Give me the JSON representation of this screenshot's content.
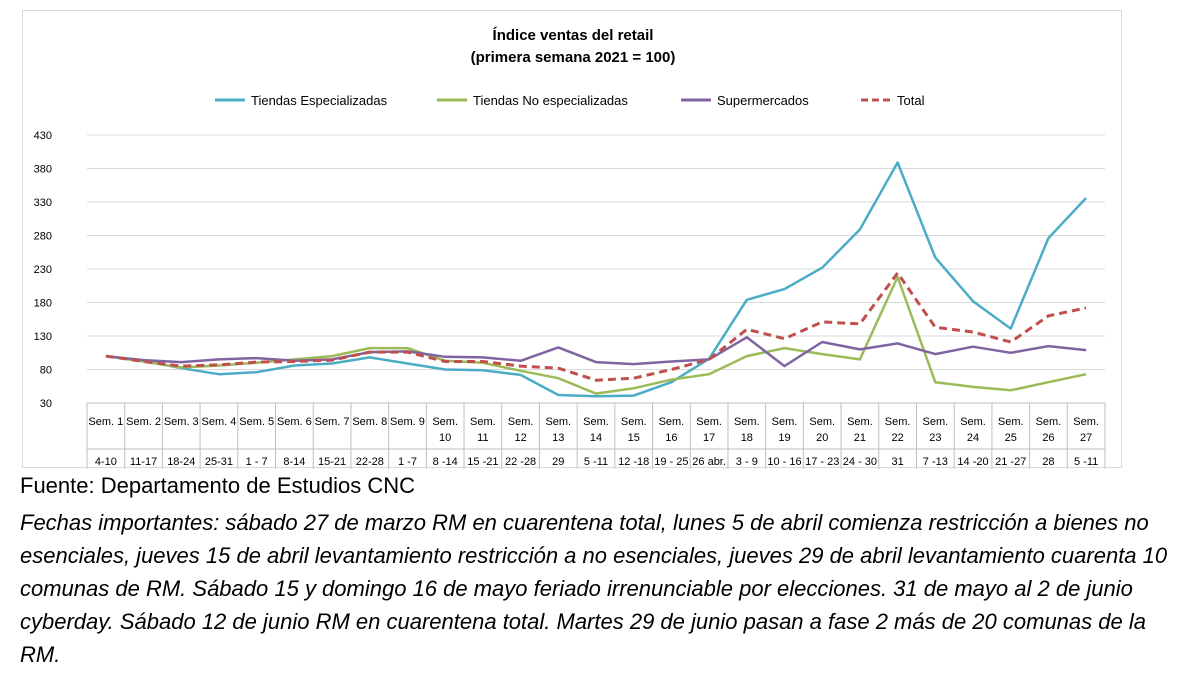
{
  "chart_data": {
    "type": "line",
    "title": "Índice ventas del retail",
    "subtitle": "(primera semana 2021 = 100)",
    "ylim": [
      30,
      430
    ],
    "yticks": [
      30,
      80,
      130,
      180,
      230,
      280,
      330,
      380,
      430
    ],
    "grid": true,
    "legend_position": "top",
    "categories": [
      {
        "week": "Sem. 1",
        "dates": "4-10"
      },
      {
        "week": "Sem. 2",
        "dates": "11-17"
      },
      {
        "week": "Sem. 3",
        "dates": "18-24"
      },
      {
        "week": "Sem. 4",
        "dates": "25-31"
      },
      {
        "week": "Sem. 5",
        "dates": "1 - 7"
      },
      {
        "week": "Sem. 6",
        "dates": "8-14"
      },
      {
        "week": "Sem. 7",
        "dates": "15-21"
      },
      {
        "week": "Sem. 8",
        "dates": "22-28"
      },
      {
        "week": "Sem. 9",
        "dates": "1 -7"
      },
      {
        "week": "Sem. 10",
        "dates": "8 -14"
      },
      {
        "week": "Sem. 11",
        "dates": "15 -21"
      },
      {
        "week": "Sem. 12",
        "dates": "22 -28"
      },
      {
        "week": "Sem. 13",
        "dates": "29"
      },
      {
        "week": "Sem. 14",
        "dates": "5 -11"
      },
      {
        "week": "Sem. 15",
        "dates": "12 -18"
      },
      {
        "week": "Sem. 16",
        "dates": "19 - 25"
      },
      {
        "week": "Sem. 17",
        "dates": "26 abr."
      },
      {
        "week": "Sem. 18",
        "dates": "3 - 9"
      },
      {
        "week": "Sem. 19",
        "dates": "10 - 16"
      },
      {
        "week": "Sem. 20",
        "dates": "17 - 23"
      },
      {
        "week": "Sem. 21",
        "dates": "24 - 30"
      },
      {
        "week": "Sem. 22",
        "dates": "31"
      },
      {
        "week": "Sem. 23",
        "dates": "7 -13"
      },
      {
        "week": "Sem. 24",
        "dates": "14 -20"
      },
      {
        "week": "Sem. 25",
        "dates": "21 -27"
      },
      {
        "week": "Sem. 26",
        "dates": "28"
      },
      {
        "week": "Sem. 27",
        "dates": "5 -11"
      }
    ],
    "series": [
      {
        "name": "Tiendas Especializadas",
        "color": "#4BACC6",
        "dash": false,
        "values": [
          100,
          93,
          82,
          73,
          76,
          86,
          89,
          98,
          89,
          80,
          79,
          72,
          42,
          40,
          41,
          61,
          96,
          184,
          200,
          232,
          289,
          389,
          247,
          182,
          141,
          276,
          336
        ]
      },
      {
        "name": "Tiendas No especializadas",
        "color": "#9BBB59",
        "dash": false,
        "values": [
          100,
          92,
          83,
          86,
          90,
          95,
          100,
          112,
          112,
          93,
          90,
          78,
          67,
          44,
          52,
          65,
          73,
          100,
          112,
          103,
          95,
          218,
          61,
          54,
          49,
          61,
          73
        ]
      },
      {
        "name": "Supermercados",
        "color": "#8064A2",
        "dash": false,
        "values": [
          100,
          94,
          91,
          95,
          97,
          93,
          95,
          106,
          107,
          99,
          98,
          93,
          113,
          91,
          88,
          92,
          95,
          128,
          85,
          121,
          110,
          119,
          103,
          114,
          105,
          115,
          109
        ]
      },
      {
        "name": "Total",
        "color": "#C0504D",
        "dash": true,
        "values": [
          100,
          92,
          85,
          87,
          91,
          92,
          94,
          106,
          106,
          92,
          92,
          85,
          82,
          64,
          67,
          80,
          95,
          140,
          126,
          151,
          148,
          224,
          143,
          136,
          121,
          160,
          172
        ]
      }
    ]
  },
  "source": "Fuente: Departamento de Estudios CNC",
  "notes": "Fechas importantes: sábado 27 de marzo RM en cuarentena total, lunes 5 de abril comienza restricción a bienes no esenciales, jueves 15 de abril levantamiento restricción a no esenciales, jueves 29 de abril levantamiento cuarenta 10 comunas de RM. Sábado 15 y domingo 16 de mayo feriado irrenunciable por elecciones. 31 de mayo al 2 de junio cyberday. Sábado 12 de junio RM en cuarentena total. Martes 29 de junio pasan a fase 2 más de 20 comunas de la RM."
}
